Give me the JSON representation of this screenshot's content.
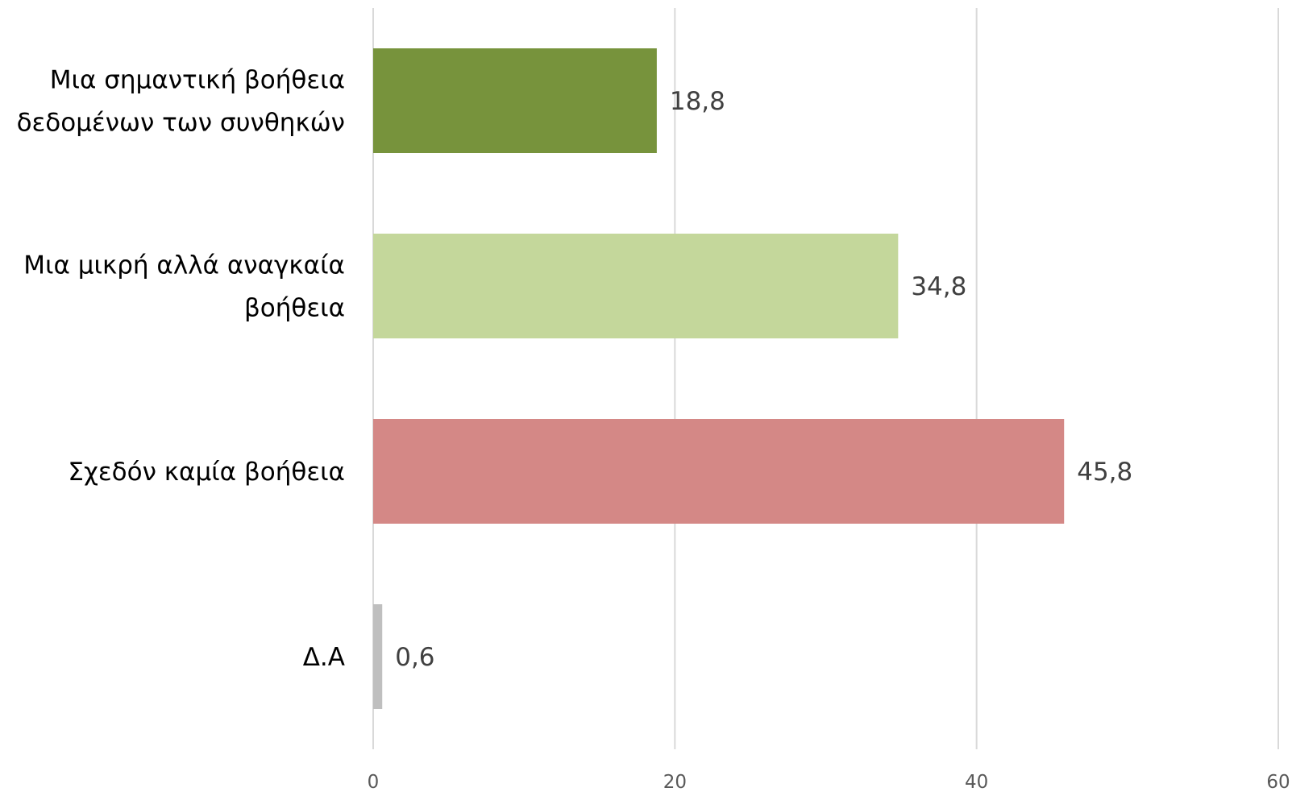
{
  "chart_data": {
    "type": "bar",
    "orientation": "horizontal",
    "categories": [
      [
        "Μια σημαντική βοήθεια",
        "δεδομένων των συνθηκών"
      ],
      [
        "Μια μικρή αλλά αναγκαία",
        "βοήθεια"
      ],
      [
        "Σχεδόν καμία βοήθεια"
      ],
      [
        "Δ.Α"
      ]
    ],
    "values": [
      18.8,
      34.8,
      45.8,
      0.6
    ],
    "value_labels": [
      "18,8",
      "34,8",
      "45,8",
      "0,6"
    ],
    "bar_colors": [
      "#77933c",
      "#c4d79b",
      "#d48886",
      "#bfbfbf"
    ],
    "xlim": [
      0,
      60
    ],
    "x_ticks": [
      0,
      20,
      40,
      60
    ],
    "x_tick_labels": [
      "0",
      "20",
      "40",
      "60"
    ],
    "grid": "vertical",
    "legend": "none"
  }
}
